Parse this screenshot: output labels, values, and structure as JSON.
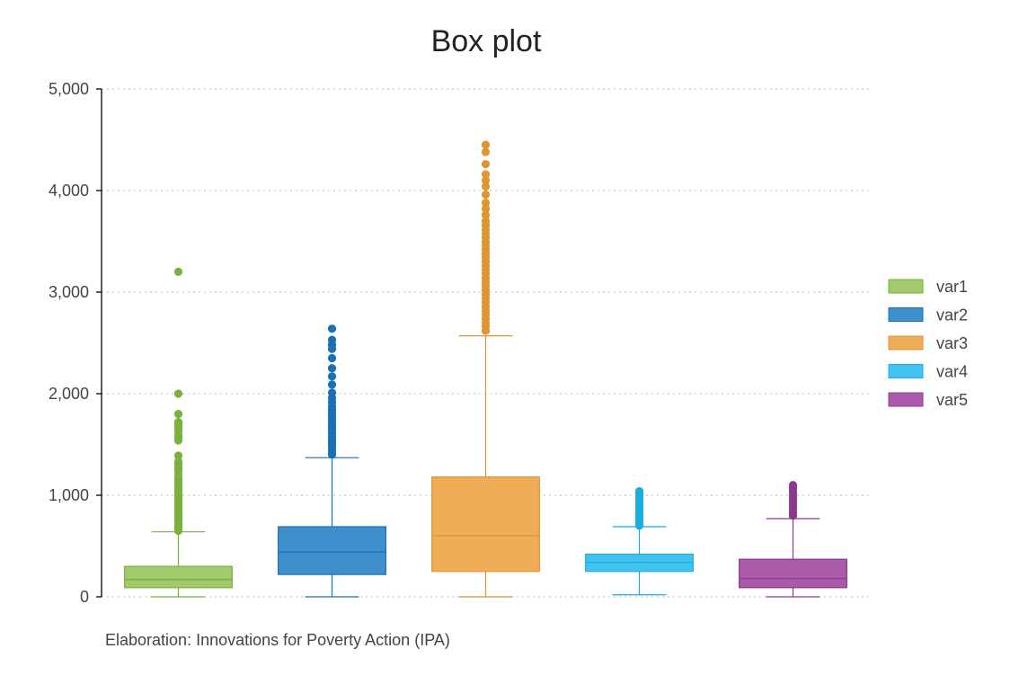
{
  "chart_data": {
    "type": "box",
    "title": "Box plot",
    "caption": "Elaboration: Innovations for Poverty Action (IPA)",
    "xlabel": "",
    "ylabel": "",
    "ylim": [
      0,
      5000
    ],
    "y_ticks": [
      0,
      1000,
      2000,
      3000,
      4000,
      5000
    ],
    "y_tick_labels": [
      "0",
      "1,000",
      "2,000",
      "3,000",
      "4,000",
      "5,000"
    ],
    "grid": true,
    "legend_position": "right",
    "series": [
      {
        "name": "var1",
        "fill": "#a2c96b",
        "stroke": "#7ab03c",
        "whisker_low": 0,
        "q1": 90,
        "median": 170,
        "q3": 300,
        "whisker_high": 640,
        "outliers": [
          650,
          665,
          680,
          700,
          720,
          740,
          760,
          780,
          800,
          820,
          840,
          860,
          880,
          900,
          920,
          940,
          960,
          980,
          1000,
          1020,
          1050,
          1080,
          1110,
          1140,
          1160,
          1200,
          1240,
          1260,
          1300,
          1330,
          1390,
          1540,
          1570,
          1600,
          1640,
          1670,
          1700,
          1720,
          1800,
          2000,
          3200
        ]
      },
      {
        "name": "var2",
        "fill": "#3f8fcd",
        "stroke": "#1a6fb5",
        "whisker_low": 0,
        "q1": 220,
        "median": 440,
        "q3": 690,
        "whisker_high": 1370,
        "outliers": [
          1400,
          1430,
          1460,
          1490,
          1520,
          1550,
          1580,
          1610,
          1640,
          1670,
          1700,
          1730,
          1760,
          1790,
          1820,
          1850,
          1880,
          1920,
          1960,
          2010,
          2090,
          2170,
          2250,
          2350,
          2440,
          2480,
          2530,
          2640
        ]
      },
      {
        "name": "var3",
        "fill": "#efad58",
        "stroke": "#e09530",
        "whisker_low": 0,
        "q1": 250,
        "median": 600,
        "q3": 1180,
        "whisker_high": 2570,
        "outliers": [
          2620,
          2660,
          2700,
          2740,
          2780,
          2820,
          2860,
          2900,
          2940,
          2980,
          3020,
          3060,
          3100,
          3140,
          3180,
          3220,
          3260,
          3300,
          3340,
          3380,
          3420,
          3460,
          3500,
          3540,
          3580,
          3620,
          3660,
          3700,
          3760,
          3820,
          3880,
          3960,
          4040,
          4100,
          4160,
          4260,
          4380,
          4450
        ]
      },
      {
        "name": "var4",
        "fill": "#41c2ef",
        "stroke": "#1aaee0",
        "whisker_low": 20,
        "q1": 250,
        "median": 340,
        "q3": 420,
        "whisker_high": 690,
        "outliers": [
          700,
          720,
          740,
          760,
          780,
          800,
          820,
          840,
          860,
          880,
          900,
          920,
          940,
          960,
          980,
          1000,
          1020,
          1040
        ]
      },
      {
        "name": "var5",
        "fill": "#a95ba9",
        "stroke": "#8a3a8c",
        "whisker_low": 0,
        "q1": 90,
        "median": 180,
        "q3": 370,
        "whisker_high": 770,
        "outliers": [
          800,
          830,
          860,
          890,
          920,
          950,
          980,
          1010,
          1040,
          1070,
          1100
        ]
      }
    ]
  }
}
